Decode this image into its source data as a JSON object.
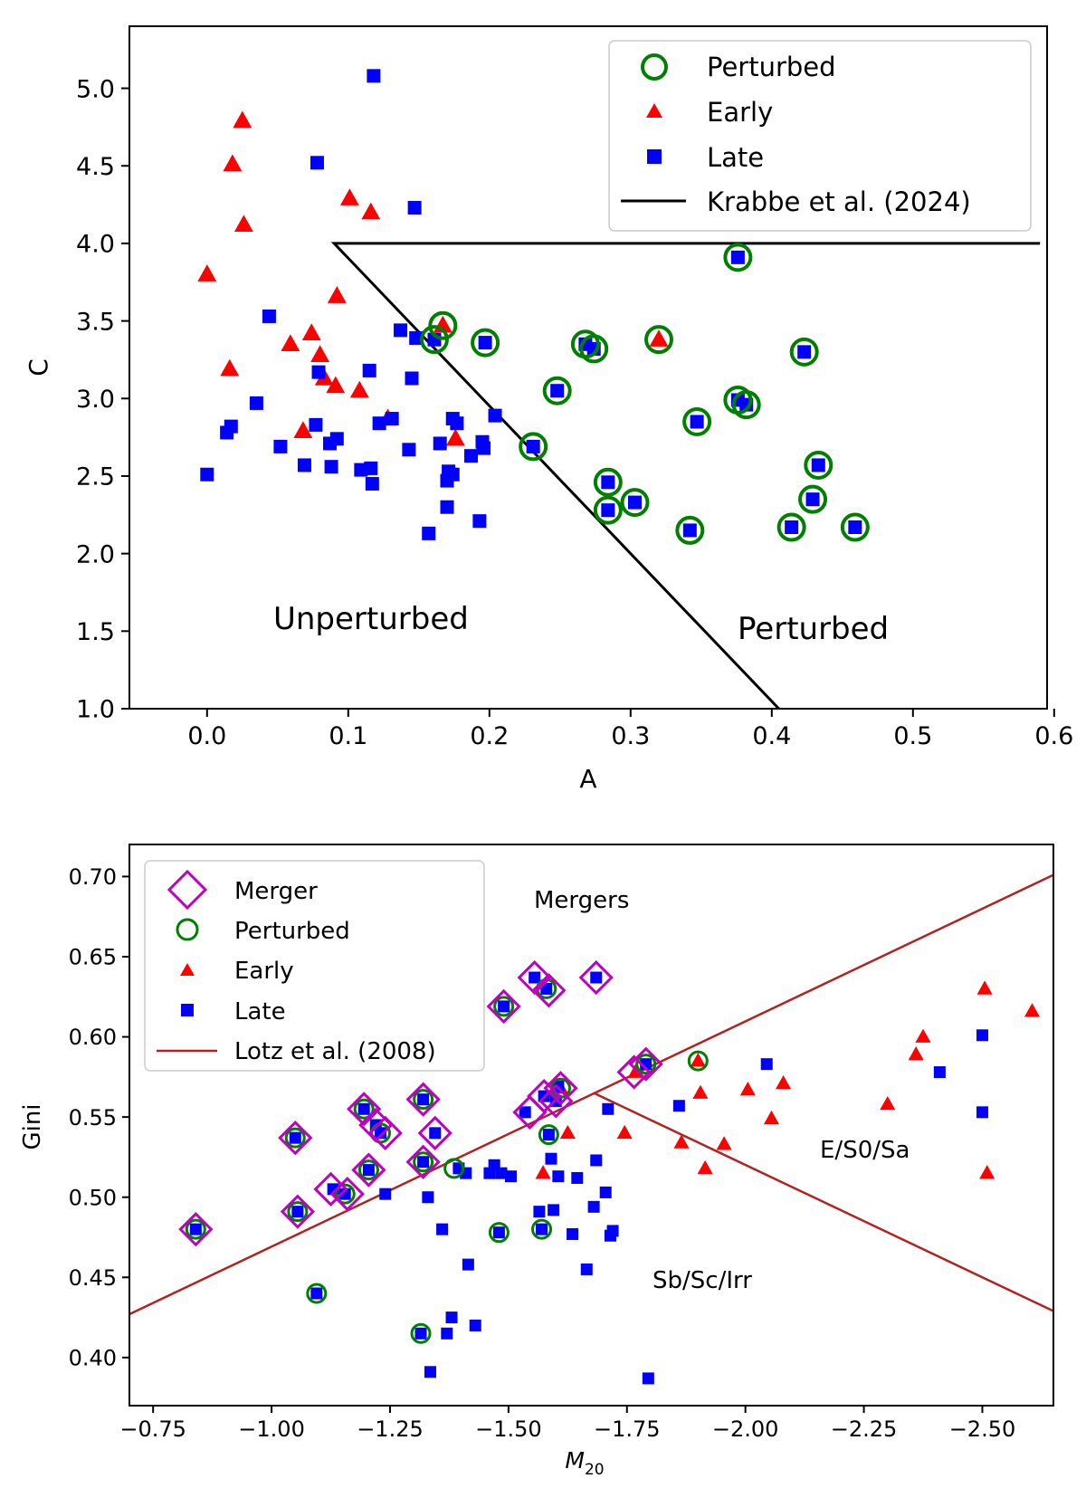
{
  "chart_data": [
    {
      "type": "scatter",
      "title": "",
      "xlabel": "A",
      "ylabel": "C",
      "xlim": [
        -0.055,
        0.595
      ],
      "ylim": [
        1.0,
        5.4
      ],
      "xticks": [
        0.0,
        0.1,
        0.2,
        0.3,
        0.4,
        0.5,
        0.6
      ],
      "xtick_labels": [
        "0.0",
        "0.1",
        "0.2",
        "0.3",
        "0.4",
        "0.5",
        "0.6"
      ],
      "yticks": [
        1.0,
        1.5,
        2.0,
        2.5,
        3.0,
        3.5,
        4.0,
        4.5,
        5.0
      ],
      "ytick_labels": [
        "1.0",
        "1.5",
        "2.0",
        "2.5",
        "3.0",
        "3.5",
        "4.0",
        "4.5",
        "5.0"
      ],
      "legend": [
        "Perturbed",
        "Early",
        "Late",
        "Krabbe et al. (2024)"
      ],
      "legend_position": "upper-right",
      "annotations": [
        "Unperturbed",
        "Perturbed"
      ],
      "series": [
        {
          "name": "Early",
          "marker": "triangle",
          "color": "#ff0000",
          "points": [
            [
              0.0,
              3.8
            ],
            [
              0.016,
              3.19
            ],
            [
              0.018,
              4.51
            ],
            [
              0.025,
              4.79
            ],
            [
              0.026,
              4.12
            ],
            [
              0.059,
              3.35
            ],
            [
              0.068,
              2.79
            ],
            [
              0.074,
              3.42
            ],
            [
              0.08,
              3.28
            ],
            [
              0.083,
              3.13
            ],
            [
              0.091,
              3.08
            ],
            [
              0.092,
              3.66
            ],
            [
              0.101,
              4.29
            ],
            [
              0.108,
              3.05
            ],
            [
              0.116,
              4.2
            ],
            [
              0.128,
              2.87
            ],
            [
              0.167,
              3.47
            ],
            [
              0.176,
              2.74
            ],
            [
              0.32,
              3.38
            ]
          ]
        },
        {
          "name": "Late",
          "marker": "square",
          "color": "#0000ff",
          "points": [
            [
              0.0,
              2.51
            ],
            [
              0.014,
              2.78
            ],
            [
              0.017,
              2.82
            ],
            [
              0.035,
              2.97
            ],
            [
              0.044,
              3.53
            ],
            [
              0.052,
              2.69
            ],
            [
              0.069,
              2.57
            ],
            [
              0.077,
              2.83
            ],
            [
              0.078,
              4.52
            ],
            [
              0.079,
              3.17
            ],
            [
              0.087,
              2.71
            ],
            [
              0.088,
              2.56
            ],
            [
              0.092,
              2.74
            ],
            [
              0.109,
              2.54
            ],
            [
              0.115,
              3.18
            ],
            [
              0.116,
              2.55
            ],
            [
              0.117,
              2.45
            ],
            [
              0.118,
              5.08
            ],
            [
              0.122,
              2.84
            ],
            [
              0.131,
              2.87
            ],
            [
              0.137,
              3.44
            ],
            [
              0.143,
              2.67
            ],
            [
              0.145,
              3.13
            ],
            [
              0.147,
              4.23
            ],
            [
              0.148,
              3.39
            ],
            [
              0.157,
              2.13
            ],
            [
              0.161,
              3.38
            ],
            [
              0.165,
              2.71
            ],
            [
              0.17,
              2.3
            ],
            [
              0.17,
              2.47
            ],
            [
              0.171,
              2.53
            ],
            [
              0.174,
              2.51
            ],
            [
              0.174,
              2.87
            ],
            [
              0.177,
              2.84
            ],
            [
              0.187,
              2.63
            ],
            [
              0.193,
              2.21
            ],
            [
              0.195,
              2.72
            ],
            [
              0.196,
              2.68
            ],
            [
              0.197,
              3.36
            ],
            [
              0.204,
              2.89
            ],
            [
              0.231,
              2.69
            ],
            [
              0.248,
              3.05
            ],
            [
              0.268,
              3.35
            ],
            [
              0.274,
              3.32
            ],
            [
              0.284,
              2.46
            ],
            [
              0.284,
              2.28
            ],
            [
              0.303,
              2.33
            ],
            [
              0.342,
              2.15
            ],
            [
              0.347,
              2.85
            ],
            [
              0.376,
              3.91
            ],
            [
              0.376,
              2.99
            ],
            [
              0.382,
              2.96
            ],
            [
              0.414,
              2.17
            ],
            [
              0.423,
              3.3
            ],
            [
              0.429,
              2.35
            ],
            [
              0.433,
              2.57
            ],
            [
              0.459,
              2.17
            ]
          ]
        },
        {
          "name": "Perturbed",
          "marker": "open-circle",
          "color": "#007f00",
          "points": [
            [
              0.161,
              3.38
            ],
            [
              0.167,
              3.47
            ],
            [
              0.197,
              3.36
            ],
            [
              0.231,
              2.69
            ],
            [
              0.248,
              3.05
            ],
            [
              0.268,
              3.35
            ],
            [
              0.274,
              3.32
            ],
            [
              0.284,
              2.46
            ],
            [
              0.284,
              2.28
            ],
            [
              0.303,
              2.33
            ],
            [
              0.32,
              3.38
            ],
            [
              0.342,
              2.15
            ],
            [
              0.347,
              2.85
            ],
            [
              0.376,
              3.91
            ],
            [
              0.376,
              2.99
            ],
            [
              0.382,
              2.96
            ],
            [
              0.414,
              2.17
            ],
            [
              0.423,
              3.3
            ],
            [
              0.429,
              2.35
            ],
            [
              0.433,
              2.57
            ],
            [
              0.459,
              2.17
            ]
          ]
        },
        {
          "name": "Krabbe et al. (2024)",
          "type": "line",
          "color": "#000000",
          "points": [
            [
              0.405,
              1.0
            ],
            [
              0.09,
              4.0
            ],
            [
              0.59,
              4.0
            ]
          ]
        }
      ]
    },
    {
      "type": "scatter",
      "title": "",
      "xlabel_main": "M",
      "xlabel_sub": "20",
      "ylabel": "Gini",
      "xlim": [
        -0.7,
        -2.65
      ],
      "ylim": [
        0.37,
        0.72
      ],
      "xticks": [
        -0.75,
        -1.0,
        -1.25,
        -1.5,
        -1.75,
        -2.0,
        -2.25,
        -2.5
      ],
      "xtick_labels": [
        "−0.75",
        "−1.00",
        "−1.25",
        "−1.50",
        "−1.75",
        "−2.00",
        "−2.25",
        "−2.50"
      ],
      "yticks": [
        0.4,
        0.45,
        0.5,
        0.55,
        0.6,
        0.65,
        0.7
      ],
      "ytick_labels": [
        "0.40",
        "0.45",
        "0.50",
        "0.55",
        "0.60",
        "0.65",
        "0.70"
      ],
      "legend": [
        "Merger",
        "Perturbed",
        "Early",
        "Late",
        "Lotz et al. (2008)"
      ],
      "legend_position": "upper-left",
      "annotations": [
        "Mergers",
        "E/S0/Sa",
        "Sb/Sc/Irr"
      ],
      "series": [
        {
          "name": "Early",
          "marker": "triangle",
          "color": "#ff0000",
          "points": [
            [
              -1.573,
              0.515
            ],
            [
              -1.61,
              0.568
            ],
            [
              -1.625,
              0.54
            ],
            [
              -1.745,
              0.54
            ],
            [
              -1.768,
              0.578
            ],
            [
              -1.865,
              0.534
            ],
            [
              -1.9,
              0.585
            ],
            [
              -1.905,
              0.565
            ],
            [
              -1.915,
              0.518
            ],
            [
              -1.955,
              0.533
            ],
            [
              -2.005,
              0.567
            ],
            [
              -2.055,
              0.549
            ],
            [
              -2.08,
              0.571
            ],
            [
              -2.3,
              0.558
            ],
            [
              -2.36,
              0.589
            ],
            [
              -2.375,
              0.6
            ],
            [
              -2.505,
              0.63
            ],
            [
              -2.51,
              0.515
            ],
            [
              -2.605,
              0.616
            ]
          ]
        },
        {
          "name": "Late",
          "marker": "square",
          "color": "#0000ff",
          "points": [
            [
              -0.84,
              0.48
            ],
            [
              -1.05,
              0.537
            ],
            [
              -1.055,
              0.491
            ],
            [
              -1.095,
              0.44
            ],
            [
              -1.13,
              0.505
            ],
            [
              -1.155,
              0.502
            ],
            [
              -1.195,
              0.555
            ],
            [
              -1.205,
              0.517
            ],
            [
              -1.22,
              0.545
            ],
            [
              -1.23,
              0.54
            ],
            [
              -1.24,
              0.502
            ],
            [
              -1.315,
              0.415
            ],
            [
              -1.32,
              0.522
            ],
            [
              -1.32,
              0.561
            ],
            [
              -1.33,
              0.5
            ],
            [
              -1.335,
              0.391
            ],
            [
              -1.345,
              0.54
            ],
            [
              -1.36,
              0.48
            ],
            [
              -1.37,
              0.415
            ],
            [
              -1.38,
              0.425
            ],
            [
              -1.395,
              0.518
            ],
            [
              -1.41,
              0.515
            ],
            [
              -1.415,
              0.458
            ],
            [
              -1.43,
              0.42
            ],
            [
              -1.46,
              0.515
            ],
            [
              -1.47,
              0.52
            ],
            [
              -1.48,
              0.478
            ],
            [
              -1.485,
              0.515
            ],
            [
              -1.49,
              0.619
            ],
            [
              -1.505,
              0.513
            ],
            [
              -1.535,
              0.553
            ],
            [
              -1.555,
              0.637
            ],
            [
              -1.565,
              0.491
            ],
            [
              -1.57,
              0.48
            ],
            [
              -1.575,
              0.563
            ],
            [
              -1.58,
              0.63
            ],
            [
              -1.585,
              0.539
            ],
            [
              -1.59,
              0.524
            ],
            [
              -1.595,
              0.492
            ],
            [
              -1.6,
              0.56
            ],
            [
              -1.605,
              0.513
            ],
            [
              -1.605,
              0.569
            ],
            [
              -1.635,
              0.477
            ],
            [
              -1.645,
              0.512
            ],
            [
              -1.665,
              0.455
            ],
            [
              -1.68,
              0.494
            ],
            [
              -1.685,
              0.523
            ],
            [
              -1.685,
              0.637
            ],
            [
              -1.705,
              0.503
            ],
            [
              -1.71,
              0.555
            ],
            [
              -1.715,
              0.476
            ],
            [
              -1.72,
              0.479
            ],
            [
              -1.79,
              0.583
            ],
            [
              -1.795,
              0.387
            ],
            [
              -1.86,
              0.557
            ],
            [
              -2.045,
              0.583
            ],
            [
              -2.41,
              0.578
            ],
            [
              -2.5,
              0.601
            ],
            [
              -2.5,
              0.553
            ]
          ]
        },
        {
          "name": "Perturbed",
          "marker": "open-circle",
          "color": "#007f00",
          "points": [
            [
              -0.84,
              0.48
            ],
            [
              -1.05,
              0.537
            ],
            [
              -1.055,
              0.491
            ],
            [
              -1.095,
              0.44
            ],
            [
              -1.155,
              0.502
            ],
            [
              -1.195,
              0.555
            ],
            [
              -1.205,
              0.517
            ],
            [
              -1.23,
              0.54
            ],
            [
              -1.315,
              0.415
            ],
            [
              -1.32,
              0.522
            ],
            [
              -1.32,
              0.561
            ],
            [
              -1.385,
              0.518
            ],
            [
              -1.48,
              0.478
            ],
            [
              -1.49,
              0.619
            ],
            [
              -1.57,
              0.48
            ],
            [
              -1.58,
              0.63
            ],
            [
              -1.585,
              0.539
            ],
            [
              -1.61,
              0.568
            ],
            [
              -1.79,
              0.583
            ],
            [
              -1.9,
              0.585
            ]
          ]
        },
        {
          "name": "Merger",
          "marker": "open-diamond",
          "color": "#bf00bf",
          "points": [
            [
              -0.84,
              0.48
            ],
            [
              -1.05,
              0.537
            ],
            [
              -1.055,
              0.491
            ],
            [
              -1.125,
              0.505
            ],
            [
              -1.16,
              0.502
            ],
            [
              -1.195,
              0.555
            ],
            [
              -1.205,
              0.517
            ],
            [
              -1.22,
              0.545
            ],
            [
              -1.24,
              0.54
            ],
            [
              -1.32,
              0.522
            ],
            [
              -1.32,
              0.561
            ],
            [
              -1.345,
              0.54
            ],
            [
              -1.49,
              0.619
            ],
            [
              -1.545,
              0.553
            ],
            [
              -1.555,
              0.637
            ],
            [
              -1.575,
              0.563
            ],
            [
              -1.585,
              0.629
            ],
            [
              -1.6,
              0.56
            ],
            [
              -1.61,
              0.568
            ],
            [
              -1.685,
              0.637
            ],
            [
              -1.765,
              0.578
            ],
            [
              -1.79,
              0.583
            ]
          ]
        },
        {
          "name": "Lotz et al. (2008)",
          "type": "line",
          "color": "#b22222",
          "points": [
            [
              -0.7,
              0.427
            ],
            [
              -2.65,
              0.701
            ]
          ]
        },
        {
          "name": "Lotz et al. (2008)",
          "type": "line",
          "color": "#b22222",
          "points": [
            [
              -1.68,
              0.565
            ],
            [
              -2.65,
              0.429
            ]
          ]
        }
      ]
    }
  ]
}
